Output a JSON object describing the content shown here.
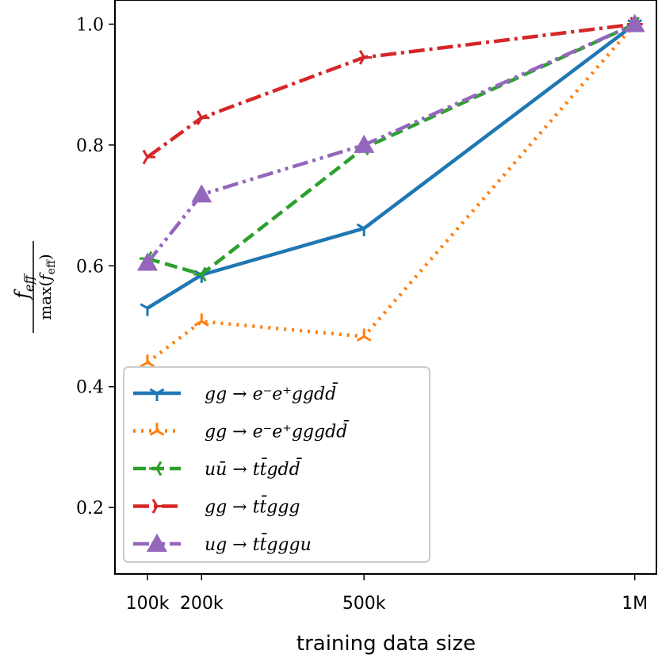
{
  "chart_data": {
    "type": "line",
    "title": "",
    "xlabel": "training data size",
    "ylabel_numerator": "f_eff",
    "ylabel_denominator": "max(f_eff)",
    "ylim": [
      0.09,
      1.04
    ],
    "xlim": [
      40000,
      1040000
    ],
    "x": [
      100000,
      200000,
      500000,
      1000000
    ],
    "x_tick_labels": [
      "100k",
      "200k",
      "500k",
      "1M"
    ],
    "y_ticks": [
      0.2,
      0.4,
      0.6,
      0.8,
      1.0
    ],
    "y_tick_labels": [
      "0.2",
      "0.4",
      "0.6",
      "0.8",
      "1.0"
    ],
    "legend_position": "lower-left",
    "series": [
      {
        "name": "gg → e⁻e⁺ggdd̄",
        "color": "#1f77b4",
        "dash": "solid",
        "marker": "tri-down",
        "values": [
          0.53,
          0.585,
          0.662,
          1.0
        ]
      },
      {
        "name": "gg → e⁻e⁺gggdd̄",
        "color": "#ff7f0e",
        "dash": "dotted",
        "marker": "tri-up",
        "values": [
          0.44,
          0.508,
          0.483,
          1.0
        ]
      },
      {
        "name": "uū → tt̄gdd̄",
        "color": "#2ca02c",
        "dash": "dashed",
        "marker": "tri-left",
        "values": [
          0.612,
          0.586,
          0.795,
          1.0
        ]
      },
      {
        "name": "gg → tt̄ggg",
        "color": "#d62728",
        "dash": "dashdot",
        "marker": "tri-right",
        "values": [
          0.78,
          0.845,
          0.945,
          1.0
        ]
      },
      {
        "name": "ug → tt̄gggu",
        "color": "#9467bd",
        "dash": "dashdotdot",
        "marker": "triangle",
        "values": [
          0.605,
          0.718,
          0.8,
          1.0
        ]
      }
    ]
  }
}
